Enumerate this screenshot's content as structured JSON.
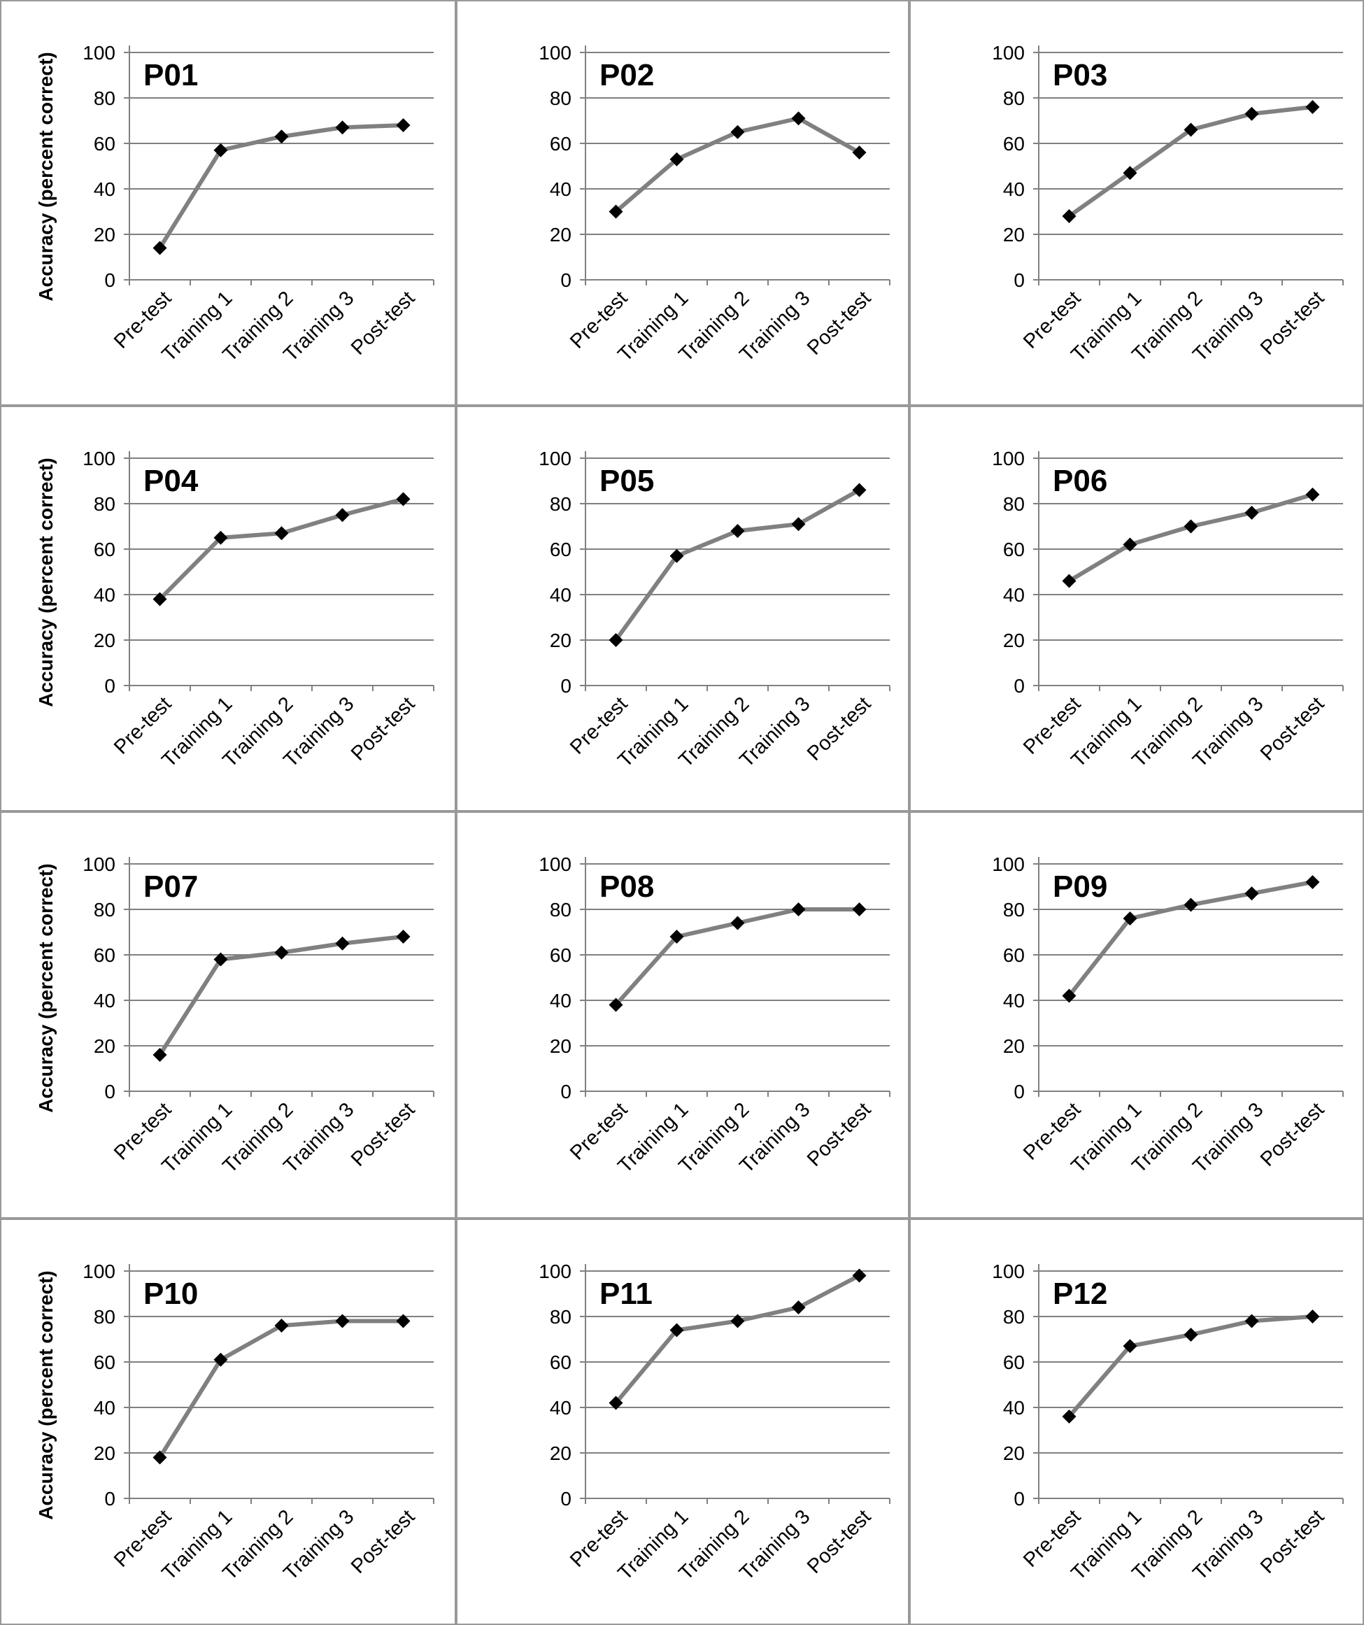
{
  "chart_data": [
    {
      "type": "line",
      "title": "P01",
      "ylabel": "Accuracy (percent correct)",
      "categories": [
        "Pre-test",
        "Training 1",
        "Training 2",
        "Training 3",
        "Post-test"
      ],
      "values": [
        14,
        57,
        63,
        67,
        68
      ],
      "ylim": [
        0,
        100
      ],
      "yticks": [
        0,
        20,
        40,
        60,
        80,
        100
      ]
    },
    {
      "type": "line",
      "title": "P02",
      "ylabel": "",
      "categories": [
        "Pre-test",
        "Training 1",
        "Training 2",
        "Training 3",
        "Post-test"
      ],
      "values": [
        30,
        53,
        65,
        71,
        56
      ],
      "ylim": [
        0,
        100
      ],
      "yticks": [
        0,
        20,
        40,
        60,
        80,
        100
      ]
    },
    {
      "type": "line",
      "title": "P03",
      "ylabel": "",
      "categories": [
        "Pre-test",
        "Training 1",
        "Training 2",
        "Training 3",
        "Post-test"
      ],
      "values": [
        28,
        47,
        66,
        73,
        76
      ],
      "ylim": [
        0,
        100
      ],
      "yticks": [
        0,
        20,
        40,
        60,
        80,
        100
      ]
    },
    {
      "type": "line",
      "title": "P04",
      "ylabel": "Accuracy (percent correct)",
      "categories": [
        "Pre-test",
        "Training 1",
        "Training 2",
        "Training 3",
        "Post-test"
      ],
      "values": [
        38,
        65,
        67,
        75,
        82
      ],
      "ylim": [
        0,
        100
      ],
      "yticks": [
        0,
        20,
        40,
        60,
        80,
        100
      ]
    },
    {
      "type": "line",
      "title": "P05",
      "ylabel": "",
      "categories": [
        "Pre-test",
        "Training 1",
        "Training 2",
        "Training 3",
        "Post-test"
      ],
      "values": [
        20,
        57,
        68,
        71,
        86
      ],
      "ylim": [
        0,
        100
      ],
      "yticks": [
        0,
        20,
        40,
        60,
        80,
        100
      ]
    },
    {
      "type": "line",
      "title": "P06",
      "ylabel": "",
      "categories": [
        "Pre-test",
        "Training 1",
        "Training 2",
        "Training 3",
        "Post-test"
      ],
      "values": [
        46,
        62,
        70,
        76,
        84
      ],
      "ylim": [
        0,
        100
      ],
      "yticks": [
        0,
        20,
        40,
        60,
        80,
        100
      ]
    },
    {
      "type": "line",
      "title": "P07",
      "ylabel": "Accuracy (percent correct)",
      "categories": [
        "Pre-test",
        "Training 1",
        "Training 2",
        "Training 3",
        "Post-test"
      ],
      "values": [
        16,
        58,
        61,
        65,
        68
      ],
      "ylim": [
        0,
        100
      ],
      "yticks": [
        0,
        20,
        40,
        60,
        80,
        100
      ]
    },
    {
      "type": "line",
      "title": "P08",
      "ylabel": "",
      "categories": [
        "Pre-test",
        "Training 1",
        "Training 2",
        "Training 3",
        "Post-test"
      ],
      "values": [
        38,
        68,
        74,
        80,
        80
      ],
      "ylim": [
        0,
        100
      ],
      "yticks": [
        0,
        20,
        40,
        60,
        80,
        100
      ]
    },
    {
      "type": "line",
      "title": "P09",
      "ylabel": "",
      "categories": [
        "Pre-test",
        "Training 1",
        "Training 2",
        "Training 3",
        "Post-test"
      ],
      "values": [
        42,
        76,
        82,
        87,
        92
      ],
      "ylim": [
        0,
        100
      ],
      "yticks": [
        0,
        20,
        40,
        60,
        80,
        100
      ]
    },
    {
      "type": "line",
      "title": "P10",
      "ylabel": "Accuracy (percent correct)",
      "categories": [
        "Pre-test",
        "Training 1",
        "Training 2",
        "Training 3",
        "Post-test"
      ],
      "values": [
        18,
        61,
        76,
        78,
        78
      ],
      "ylim": [
        0,
        100
      ],
      "yticks": [
        0,
        20,
        40,
        60,
        80,
        100
      ]
    },
    {
      "type": "line",
      "title": "P11",
      "ylabel": "",
      "categories": [
        "Pre-test",
        "Training 1",
        "Training 2",
        "Training 3",
        "Post-test"
      ],
      "values": [
        42,
        74,
        78,
        84,
        98
      ],
      "ylim": [
        0,
        100
      ],
      "yticks": [
        0,
        20,
        40,
        60,
        80,
        100
      ]
    },
    {
      "type": "line",
      "title": "P12",
      "ylabel": "",
      "categories": [
        "Pre-test",
        "Training 1",
        "Training 2",
        "Training 3",
        "Post-test"
      ],
      "values": [
        36,
        67,
        72,
        78,
        80
      ],
      "ylim": [
        0,
        100
      ],
      "yticks": [
        0,
        20,
        40,
        60,
        80,
        100
      ]
    }
  ],
  "colors": {
    "line": "#808080",
    "marker": "#000000",
    "grid": "#808080",
    "axis": "#808080",
    "border": "#999999"
  }
}
